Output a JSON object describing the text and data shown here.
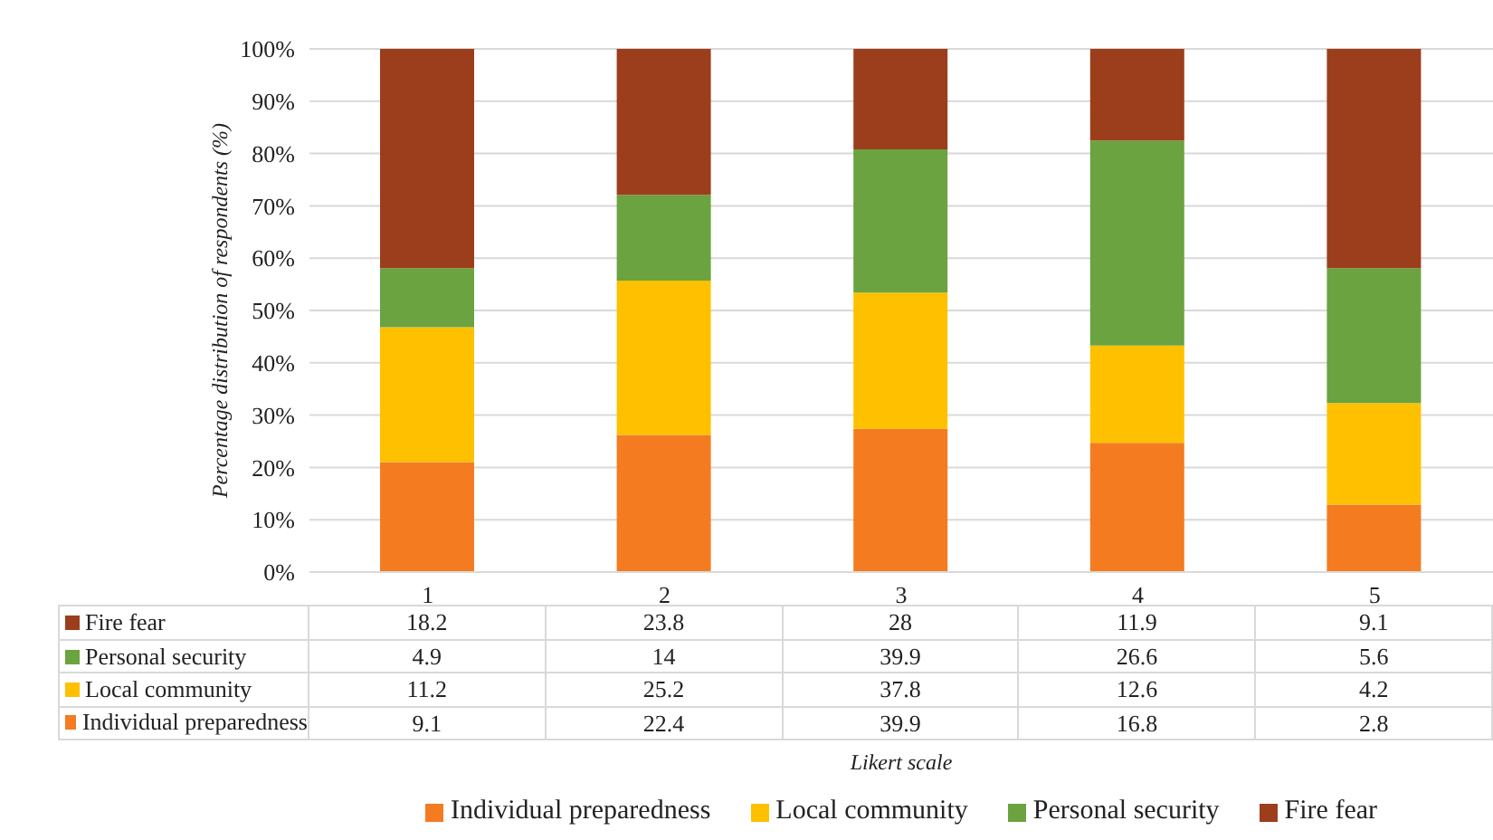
{
  "chart_data": {
    "type": "bar",
    "stacked": true,
    "ylabel": "Percentage distribution of respondents (%)",
    "categories": [
      "1",
      "2",
      "3",
      "4",
      "5"
    ],
    "series": [
      {
        "name": "Individual preparedness",
        "color": "#f47b20",
        "values": [
          21.0,
          26.2,
          27.4,
          24.7,
          12.9
        ]
      },
      {
        "name": "Local community",
        "color": "#ffc000",
        "values": [
          25.8,
          29.5,
          26.0,
          18.6,
          19.4
        ]
      },
      {
        "name": "Personal security",
        "color": "#6aa33f",
        "values": [
          11.3,
          16.4,
          27.4,
          39.2,
          25.8
        ]
      },
      {
        "name": "Fire fear",
        "color": "#9c3e1c",
        "values": [
          41.9,
          27.9,
          19.2,
          17.5,
          41.9
        ]
      }
    ],
    "annotations": [
      "Likert scale",
      "9.1",
      "22.4",
      "39.9",
      "16.8",
      "2.8",
      "11.2",
      "25.2",
      "37.8",
      "12.6",
      "4.2",
      "4.9",
      "14",
      "39.9",
      "26.6",
      "5.6",
      "18.2",
      "23.8",
      "28",
      "11.9",
      "9.1"
    ],
    "ylim": [
      0,
      100
    ],
    "yticks": [
      {
        "value": 0,
        "label": "0%"
      },
      {
        "value": 10,
        "label": "10%"
      },
      {
        "value": 20,
        "label": "20%"
      },
      {
        "value": 30,
        "label": "30%"
      },
      {
        "value": 40,
        "label": "40%"
      },
      {
        "value": 50,
        "label": "50%"
      },
      {
        "value": 60,
        "label": "60%"
      },
      {
        "value": 70,
        "label": "70%"
      },
      {
        "value": 80,
        "label": "80%"
      },
      {
        "value": 90,
        "label": "90%"
      },
      {
        "value": 100,
        "label": "100%"
      }
    ],
    "grid": "y",
    "legend": "bottom"
  }
}
